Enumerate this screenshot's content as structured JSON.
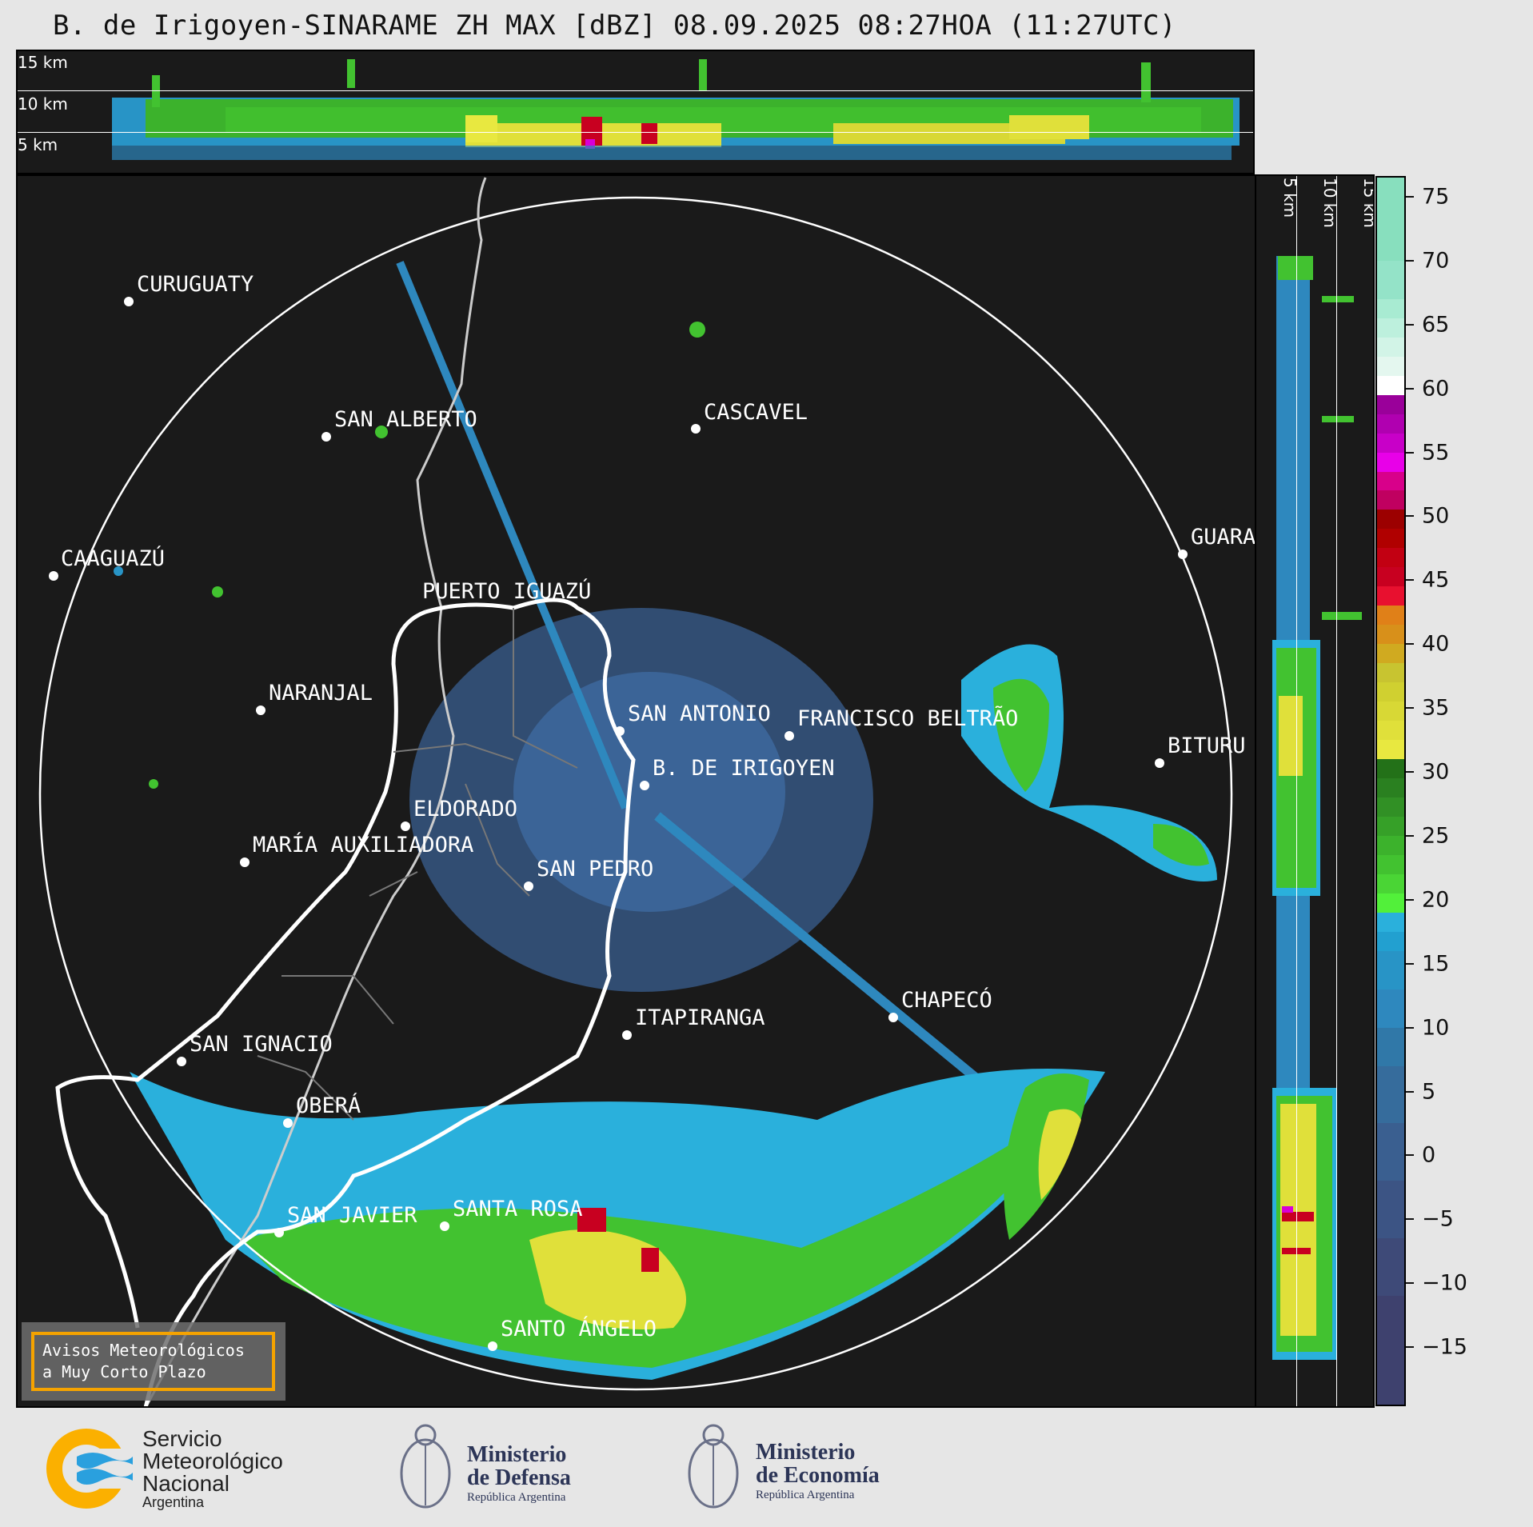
{
  "title": "B. de Irigoyen-SINARAME ZH MAX [dBZ] 08.09.2025 08:27HOA (11:27UTC)",
  "top_panel": {
    "labels": [
      "15 km",
      "10 km",
      "5 km"
    ]
  },
  "side_panel": {
    "labels": [
      "5 km",
      "10 km",
      "15 km"
    ]
  },
  "colorbar": {
    "range": [
      -19.5,
      76.5
    ],
    "ticks": [
      "75",
      "70",
      "65",
      "60",
      "55",
      "50",
      "45",
      "40",
      "35",
      "30",
      "25",
      "20",
      "15",
      "10",
      "5",
      "0",
      "−5",
      "−10",
      "−15"
    ],
    "tick_values": [
      75,
      70,
      65,
      60,
      55,
      50,
      45,
      40,
      35,
      30,
      25,
      20,
      15,
      10,
      5,
      0,
      -5,
      -10,
      -15
    ],
    "bands": [
      {
        "from": 70,
        "color": "#88dfbe"
      },
      {
        "from": 67,
        "color": "#94e3c8"
      },
      {
        "from": 65.5,
        "color": "#a8ebd2"
      },
      {
        "from": 64,
        "color": "#bdf0dd"
      },
      {
        "from": 62.5,
        "color": "#d2f4e7"
      },
      {
        "from": 61,
        "color": "#e4f7ef"
      },
      {
        "from": 59.5,
        "color": "#ffffff"
      },
      {
        "from": 58,
        "color": "#9a009a"
      },
      {
        "from": 56.5,
        "color": "#b000b0"
      },
      {
        "from": 55,
        "color": "#c800c8"
      },
      {
        "from": 53.5,
        "color": "#e800e8"
      },
      {
        "from": 52,
        "color": "#d8008a"
      },
      {
        "from": 50.5,
        "color": "#c00060"
      },
      {
        "from": 49,
        "color": "#9c0000"
      },
      {
        "from": 47.5,
        "color": "#b00000"
      },
      {
        "from": 46,
        "color": "#c20012"
      },
      {
        "from": 44.5,
        "color": "#c80020"
      },
      {
        "from": 43,
        "color": "#e8102f"
      },
      {
        "from": 41.5,
        "color": "#e08018"
      },
      {
        "from": 40,
        "color": "#d8901a"
      },
      {
        "from": 38.5,
        "color": "#d0aa20"
      },
      {
        "from": 37,
        "color": "#c8c430"
      },
      {
        "from": 35.5,
        "color": "#d0d030"
      },
      {
        "from": 34,
        "color": "#d8d835"
      },
      {
        "from": 32.5,
        "color": "#e0e03a"
      },
      {
        "from": 31,
        "color": "#e8e840"
      },
      {
        "from": 29.5,
        "color": "#237118"
      },
      {
        "from": 28,
        "color": "#2a8020"
      },
      {
        "from": 26.5,
        "color": "#319025"
      },
      {
        "from": 25,
        "color": "#36a028"
      },
      {
        "from": 23.5,
        "color": "#3cb22c"
      },
      {
        "from": 22,
        "color": "#42c230"
      },
      {
        "from": 20.5,
        "color": "#4ad535"
      },
      {
        "from": 19,
        "color": "#52f03a"
      },
      {
        "from": 17.5,
        "color": "#2ab0dc"
      },
      {
        "from": 16,
        "color": "#22a0d0"
      },
      {
        "from": 13,
        "color": "#2894c6"
      },
      {
        "from": 10,
        "color": "#2e88be"
      },
      {
        "from": 7,
        "color": "#3078a8"
      },
      {
        "from": 2.5,
        "color": "#366c9c"
      },
      {
        "from": -2,
        "color": "#3a5f90"
      },
      {
        "from": -6.5,
        "color": "#3c5484"
      },
      {
        "from": -11,
        "color": "#3e4a78"
      },
      {
        "from": -19.5,
        "color": "#3e416e"
      }
    ]
  },
  "cities": [
    {
      "name": "CURUGUATY"
    },
    {
      "name": "SAN ALBERTO"
    },
    {
      "name": "CASCAVEL"
    },
    {
      "name": "CAAGUAZÚ"
    },
    {
      "name": "GUARA"
    },
    {
      "name": "PUERTO IGUAZÚ"
    },
    {
      "name": "NARANJAL"
    },
    {
      "name": "SAN ANTONIO"
    },
    {
      "name": "FRANCISCO BELTRÃO"
    },
    {
      "name": "BITURU"
    },
    {
      "name": "B. DE IRIGOYEN"
    },
    {
      "name": "ELDORADO"
    },
    {
      "name": "MARÍA AUXILIADORA"
    },
    {
      "name": "SAN PEDRO"
    },
    {
      "name": "CHAPECÓ"
    },
    {
      "name": "ITAPIRANGA"
    },
    {
      "name": "SAN IGNACIO"
    },
    {
      "name": "OBERÁ"
    },
    {
      "name": "SAN JAVIER"
    },
    {
      "name": "SANTA ROSA"
    },
    {
      "name": "SANTO ÁNGELO"
    }
  ],
  "warning_box": {
    "line1": "Avisos Meteorológicos",
    "line2": "a Muy Corto Plazo",
    "border_color": "#f5a300"
  },
  "footer": {
    "smn": {
      "line1": "Servicio",
      "line2": "Meteorológico",
      "line3": "Nacional",
      "line4": "Argentina"
    },
    "defensa": {
      "line1": "Ministerio",
      "line2": "de Defensa",
      "line3": "República Argentina"
    },
    "economia": {
      "line1": "Ministerio",
      "line2": "de Economía",
      "line3": "República Argentina"
    }
  }
}
